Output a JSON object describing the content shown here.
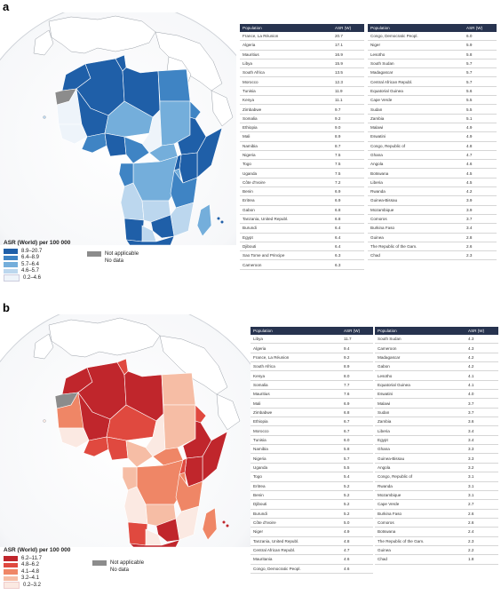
{
  "panels": {
    "a_label": "a",
    "b_label": "b"
  },
  "colors": {
    "header_bg": "#27334f",
    "not_applicable": "#8c8c8c",
    "no_data": "#ffffff",
    "a_scale": [
      "#1f5fa8",
      "#3f84c4",
      "#74aedb",
      "#bcd7ee",
      "#eef4fa"
    ],
    "b_scale": [
      "#c0262c",
      "#e0493f",
      "#ef8666",
      "#f6bda5",
      "#fbe9e2"
    ]
  },
  "legend_a": {
    "title": "ASR (World) per 100 000",
    "bins": [
      "8.9–20.7",
      "6.4–8.9",
      "5.7–6.4",
      "4.6–5.7",
      "0.2–4.6"
    ],
    "not_applicable": "Not applicable",
    "no_data": "No data"
  },
  "legend_b": {
    "title": "ASR (World) per 100 000",
    "bins": [
      "6.2–11.7",
      "4.8–6.2",
      "4.1–4.8",
      "3.2–4.1",
      "0.2–3.2"
    ],
    "not_applicable": "Not applicable",
    "no_data": "No data"
  },
  "chart_data": [
    {
      "type": "table",
      "panel": "a",
      "columns": [
        "Population",
        "ASR (W)"
      ],
      "rows": [
        [
          "France, La Réunion",
          "20.7"
        ],
        [
          "Algeria",
          "17.1"
        ],
        [
          "Mauritius",
          "16.9"
        ],
        [
          "Libya",
          "15.9"
        ],
        [
          "South Africa",
          "13.5"
        ],
        [
          "Morocco",
          "12.3"
        ],
        [
          "Tunisia",
          "11.9"
        ],
        [
          "Kenya",
          "11.1"
        ],
        [
          "Zimbabwe",
          "9.7"
        ],
        [
          "Somalia",
          "9.2"
        ],
        [
          "Ethiopia",
          "9.0"
        ],
        [
          "Mali",
          "8.9"
        ],
        [
          "Namibia",
          "8.7"
        ],
        [
          "Nigeria",
          "7.5"
        ],
        [
          "Togo",
          "7.5"
        ],
        [
          "Uganda",
          "7.5"
        ],
        [
          "Côte d'Ivoire",
          "7.2"
        ],
        [
          "Benin",
          "6.9"
        ],
        [
          "Eritrea",
          "6.9"
        ],
        [
          "Gabon",
          "6.8"
        ],
        [
          "Tanzania, United Republ.",
          "6.8"
        ],
        [
          "Burundi",
          "6.4"
        ],
        [
          "Egypt",
          "6.4"
        ],
        [
          "Djibouti",
          "6.4"
        ],
        [
          "Sao Tome and Principe",
          "6.3"
        ],
        [
          "Cameroon",
          "6.3"
        ]
      ]
    },
    {
      "type": "table",
      "panel": "a",
      "columns": [
        "Population",
        "ASR (W)"
      ],
      "rows": [
        [
          "Congo, Democratic Peopl.",
          "6.0"
        ],
        [
          "Niger",
          "5.9"
        ],
        [
          "Lesotho",
          "5.8"
        ],
        [
          "South Sudan",
          "5.7"
        ],
        [
          "Madagascar",
          "5.7"
        ],
        [
          "Central African Republ.",
          "5.7"
        ],
        [
          "Equatorial Guinea",
          "5.6"
        ],
        [
          "Cape Verde",
          "5.5"
        ],
        [
          "Sudan",
          "5.5"
        ],
        [
          "Zambia",
          "5.1"
        ],
        [
          "Malawi",
          "4.9"
        ],
        [
          "Eswatini",
          "4.9"
        ],
        [
          "Congo, Republic of",
          "4.8"
        ],
        [
          "Ghana",
          "4.7"
        ],
        [
          "Angola",
          "4.6"
        ],
        [
          "Botswana",
          "4.5"
        ],
        [
          "Liberia",
          "4.5"
        ],
        [
          "Rwanda",
          "4.2"
        ],
        [
          "Guinea-Bissau",
          "3.9"
        ],
        [
          "Mozambique",
          "3.9"
        ],
        [
          "Comoros",
          "3.7"
        ],
        [
          "Burkina Faso",
          "3.4"
        ],
        [
          "Guinea",
          "2.8"
        ],
        [
          "The Republic of the Gam.",
          "2.6"
        ],
        [
          "Chad",
          "2.3"
        ]
      ]
    },
    {
      "type": "table",
      "panel": "b",
      "columns": [
        "Population",
        "ASR (W)"
      ],
      "rows": [
        [
          "Libya",
          "11.7"
        ],
        [
          "Algeria",
          "9.4"
        ],
        [
          "France, La Réunion",
          "9.2"
        ],
        [
          "South Africa",
          "8.9"
        ],
        [
          "Kenya",
          "8.0"
        ],
        [
          "Somalia",
          "7.7"
        ],
        [
          "Mauritius",
          "7.6"
        ],
        [
          "Mali",
          "6.9"
        ],
        [
          "Zimbabwe",
          "6.8"
        ],
        [
          "Ethiopia",
          "6.7"
        ],
        [
          "Morocco",
          "6.7"
        ],
        [
          "Tunisia",
          "6.0"
        ],
        [
          "Namibia",
          "5.8"
        ],
        [
          "Nigeria",
          "5.7"
        ],
        [
          "Uganda",
          "5.5"
        ],
        [
          "Togo",
          "5.4"
        ],
        [
          "Eritrea",
          "5.2"
        ],
        [
          "Benin",
          "5.2"
        ],
        [
          "Djibouti",
          "5.2"
        ],
        [
          "Burundi",
          "5.2"
        ],
        [
          "Côte d'Ivoire",
          "5.0"
        ],
        [
          "Niger",
          "4.9"
        ],
        [
          "Tanzania, United Republ.",
          "4.8"
        ],
        [
          "Central African Republ.",
          "4.7"
        ],
        [
          "Mauritania",
          "4.6"
        ],
        [
          "Congo, Democratic Peopl.",
          "4.6"
        ]
      ]
    },
    {
      "type": "table",
      "panel": "b",
      "columns": [
        "Population",
        "ASR (W)"
      ],
      "rows": [
        [
          "South Sudan",
          "4.3"
        ],
        [
          "Cameroon",
          "4.3"
        ],
        [
          "Madagascar",
          "4.2"
        ],
        [
          "Gabon",
          "4.2"
        ],
        [
          "Lesotho",
          "4.1"
        ],
        [
          "Equatorial Guinea",
          "4.1"
        ],
        [
          "Eswatini",
          "4.0"
        ],
        [
          "Malawi",
          "3.7"
        ],
        [
          "Sudan",
          "3.7"
        ],
        [
          "Zambia",
          "3.6"
        ],
        [
          "Liberia",
          "3.4"
        ],
        [
          "Egypt",
          "3.4"
        ],
        [
          "Ghana",
          "3.3"
        ],
        [
          "Guinea-Bissau",
          "3.3"
        ],
        [
          "Angola",
          "3.2"
        ],
        [
          "Congo, Republic of",
          "3.1"
        ],
        [
          "Rwanda",
          "3.1"
        ],
        [
          "Mozambique",
          "3.1"
        ],
        [
          "Cape Verde",
          "2.7"
        ],
        [
          "Burkina Faso",
          "2.6"
        ],
        [
          "Comoros",
          "2.6"
        ],
        [
          "Botswana",
          "2.4"
        ],
        [
          "The Republic of the Gam.",
          "2.3"
        ],
        [
          "Guinea",
          "2.2"
        ],
        [
          "Chad",
          "1.8"
        ]
      ]
    }
  ]
}
